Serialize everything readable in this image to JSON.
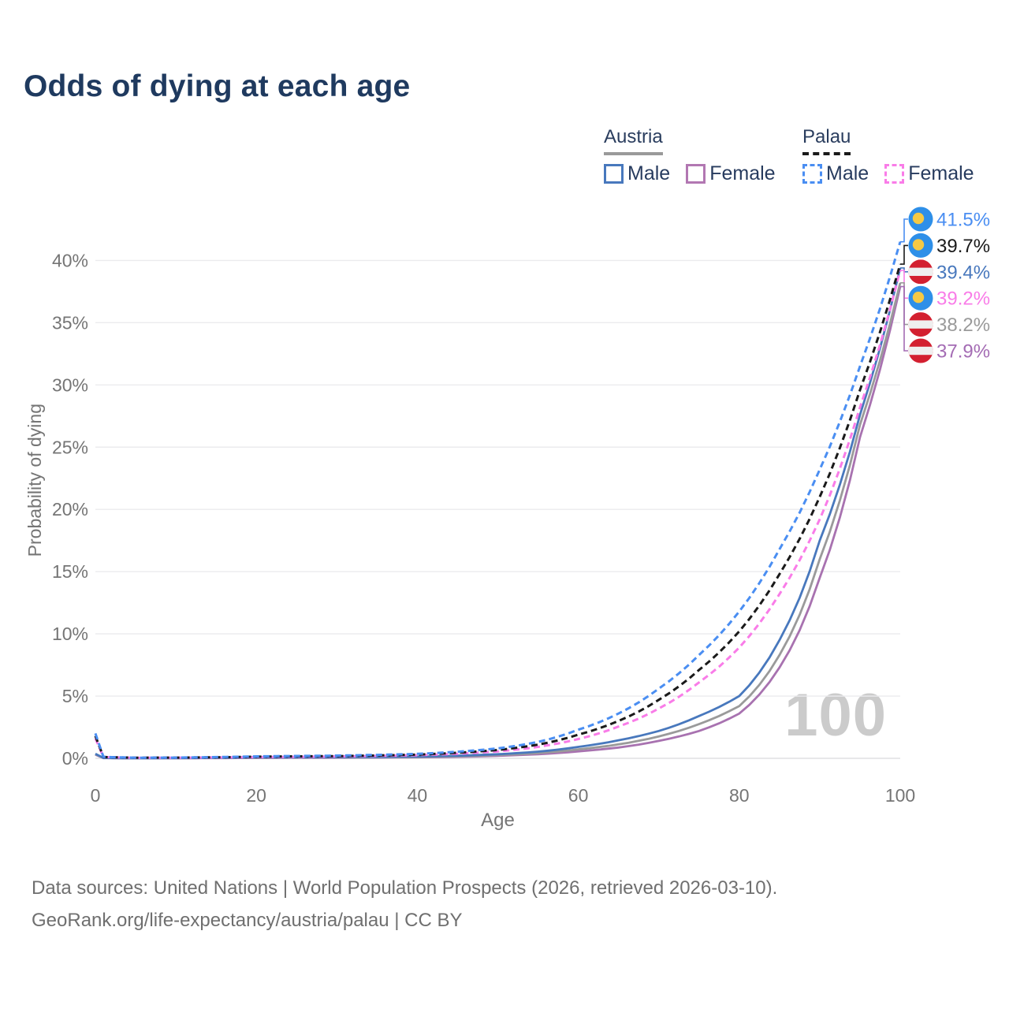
{
  "title": "Odds of dying at each age",
  "watermark": "100",
  "legend": {
    "groups": [
      {
        "name": "Austria",
        "line_style": "solid",
        "line_color": "#9a9a9a",
        "items": [
          {
            "label": "Male",
            "color": "#4878bd"
          },
          {
            "label": "Female",
            "color": "#b277b2"
          }
        ]
      },
      {
        "name": "Palau",
        "line_style": "dashed",
        "line_color": "#1a1a1a",
        "items": [
          {
            "label": "Male",
            "color": "#4a8ef2"
          },
          {
            "label": "Female",
            "color": "#f97ce8"
          }
        ]
      }
    ]
  },
  "source": {
    "line1": "Data sources: United Nations | World Population Prospects (2026, retrieved 2026-03-10).",
    "line2": "GeoRank.org/life-expectancy/austria/palau | CC BY"
  },
  "chart_data": {
    "type": "line",
    "title": "Odds of dying at each age",
    "xlabel": "Age",
    "ylabel": "Probability of dying",
    "xlim": [
      0,
      100
    ],
    "ylim_pct": [
      0,
      43
    ],
    "grid": "horizontal",
    "x_ticks": [
      0,
      20,
      40,
      60,
      80,
      100
    ],
    "x_tick_labels": [
      "0",
      "20",
      "40",
      "60",
      "80",
      "100"
    ],
    "y_ticks_pct": [
      0,
      5,
      10,
      15,
      20,
      25,
      30,
      35,
      40
    ],
    "y_tick_labels": [
      "0%",
      "5%",
      "10%",
      "15%",
      "20%",
      "25%",
      "30%",
      "35%",
      "40%"
    ],
    "ages": [
      0,
      1,
      5,
      10,
      15,
      20,
      25,
      30,
      35,
      40,
      45,
      50,
      55,
      60,
      65,
      70,
      75,
      80,
      85,
      90,
      95,
      100
    ],
    "series": [
      {
        "name": "Austria Female",
        "country": "Austria",
        "sex": "female",
        "style": "solid",
        "color": "#a872b0",
        "values": [
          0.3,
          0.02,
          0.01,
          0.01,
          0.02,
          0.03,
          0.04,
          0.05,
          0.06,
          0.08,
          0.12,
          0.2,
          0.33,
          0.56,
          0.87,
          1.4,
          2.2,
          3.6,
          7.3,
          14.5,
          25.8,
          37.9
        ]
      },
      {
        "name": "Austria Both",
        "country": "Austria",
        "sex": "both",
        "style": "solid",
        "color": "#9a9a9a",
        "values": [
          0.33,
          0.03,
          0.01,
          0.01,
          0.03,
          0.05,
          0.06,
          0.07,
          0.08,
          0.11,
          0.16,
          0.26,
          0.42,
          0.72,
          1.12,
          1.76,
          2.75,
          4.2,
          8.3,
          16.0,
          26.8,
          38.2
        ]
      },
      {
        "name": "Austria Male",
        "country": "Austria",
        "sex": "male",
        "style": "solid",
        "color": "#4878bd",
        "values": [
          0.37,
          0.03,
          0.01,
          0.02,
          0.04,
          0.07,
          0.08,
          0.09,
          0.11,
          0.14,
          0.21,
          0.33,
          0.54,
          0.92,
          1.45,
          2.2,
          3.4,
          5.0,
          9.5,
          17.5,
          27.6,
          39.4
        ]
      },
      {
        "name": "Palau Female",
        "country": "Palau",
        "sex": "female",
        "style": "dashed",
        "color": "#f97ce8",
        "values": [
          1.6,
          0.1,
          0.04,
          0.05,
          0.07,
          0.1,
          0.12,
          0.15,
          0.19,
          0.25,
          0.37,
          0.56,
          0.92,
          1.55,
          2.55,
          4.0,
          6.1,
          8.9,
          13.2,
          19.2,
          28.2,
          39.2
        ]
      },
      {
        "name": "Palau Both",
        "country": "Palau",
        "sex": "both",
        "style": "dashed",
        "color": "#1a1a1a",
        "values": [
          1.8,
          0.11,
          0.05,
          0.06,
          0.08,
          0.13,
          0.16,
          0.18,
          0.23,
          0.3,
          0.45,
          0.67,
          1.1,
          1.9,
          3.0,
          4.7,
          7.1,
          10.2,
          14.8,
          21.0,
          29.6,
          39.7
        ]
      },
      {
        "name": "Palau Male",
        "country": "Palau",
        "sex": "male",
        "style": "dashed",
        "color": "#4a8ef2",
        "values": [
          2.0,
          0.12,
          0.05,
          0.06,
          0.1,
          0.16,
          0.19,
          0.22,
          0.28,
          0.36,
          0.53,
          0.8,
          1.32,
          2.3,
          3.6,
          5.6,
          8.3,
          11.8,
          16.8,
          23.2,
          31.5,
          41.5
        ]
      }
    ],
    "end_labels": [
      {
        "flag": "palau",
        "series": "Palau Male",
        "value": "41.5%",
        "end_value": 41.5,
        "color": "#4a8ef2"
      },
      {
        "flag": "palau",
        "series": "Palau Both",
        "value": "39.7%",
        "end_value": 39.7,
        "color": "#1a1a1a"
      },
      {
        "flag": "austria",
        "series": "Austria Male",
        "value": "39.4%",
        "end_value": 39.4,
        "color": "#4878bd"
      },
      {
        "flag": "palau",
        "series": "Palau Female",
        "value": "39.2%",
        "end_value": 39.2,
        "color": "#f97ce8"
      },
      {
        "flag": "austria",
        "series": "Austria Both",
        "value": "38.2%",
        "end_value": 38.2,
        "color": "#9a9a9a"
      },
      {
        "flag": "austria",
        "series": "Austria Female",
        "value": "37.9%",
        "end_value": 37.9,
        "color": "#a46cb4"
      }
    ],
    "flag_colors": {
      "palau_blue": "#2e8fe8",
      "palau_yellow": "#f6c944",
      "austria_red": "#d32030",
      "austria_white": "#efefef"
    }
  }
}
